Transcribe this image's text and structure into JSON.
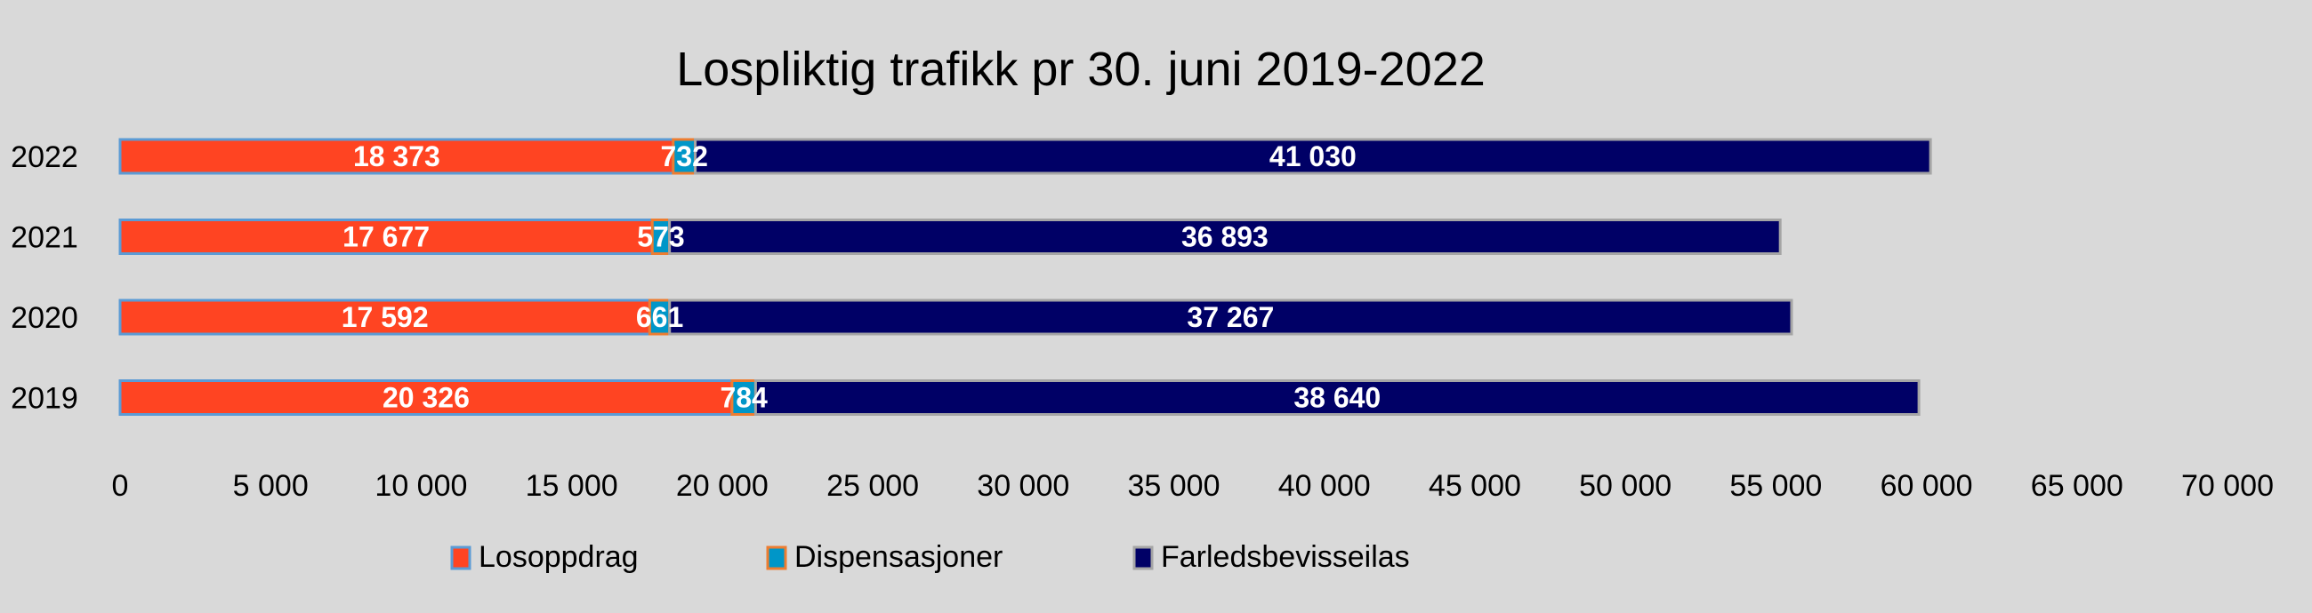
{
  "chart_data": {
    "type": "bar",
    "orientation": "horizontal",
    "stacked": true,
    "title": "Lospliktig trafikk pr 30. juni 2019-2022",
    "xlabel": "",
    "ylabel": "",
    "categories": [
      "2022",
      "2021",
      "2020",
      "2019"
    ],
    "series": [
      {
        "name": "Losoppdrag",
        "color": "#ff4422",
        "border": "#5b9bd5",
        "values": [
          18373,
          17677,
          17592,
          20326
        ],
        "labels": [
          "18 373",
          "17 677",
          "17 592",
          "20 326"
        ]
      },
      {
        "name": "Dispensasjoner",
        "color": "#0096c8",
        "border": "#ed7d31",
        "values": [
          732,
          573,
          661,
          784
        ],
        "labels": [
          "732",
          "573",
          "661",
          "784"
        ]
      },
      {
        "name": "Farledsbevisseilas",
        "color": "#000066",
        "border": "#a5a5a5",
        "values": [
          41030,
          36893,
          37267,
          38640
        ],
        "labels": [
          "41 030",
          "36 893",
          "37 267",
          "38 640"
        ]
      }
    ],
    "xlim": [
      0,
      70000
    ],
    "xticks": [
      0,
      5000,
      10000,
      15000,
      20000,
      25000,
      30000,
      35000,
      40000,
      45000,
      50000,
      55000,
      60000,
      65000,
      70000
    ],
    "xtick_labels": [
      "0",
      "5 000",
      "10 000",
      "15 000",
      "20 000",
      "25 000",
      "30 000",
      "35 000",
      "40 000",
      "45 000",
      "50 000",
      "55 000",
      "60 000",
      "65 000",
      "70 000"
    ],
    "grid": false,
    "legend_position": "bottom"
  }
}
